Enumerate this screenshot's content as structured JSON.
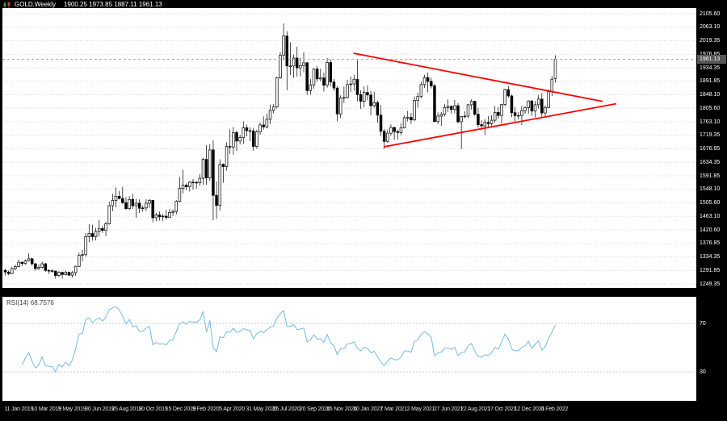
{
  "header": {
    "title": "GOLD,Weekly",
    "ohlc": "1900.25 1973.85 1887.11 1961.13"
  },
  "rsi_panel": {
    "label": "RSI(14)",
    "value": "68.7576"
  },
  "colors": {
    "background": "#000000",
    "plot_bg": "#ffffff",
    "grid": "#d8d8d8",
    "candle": "#000000",
    "bull_fill": "#ffffff",
    "bear_fill": "#000000",
    "rsi_line": "#74b9e8",
    "trendline": "#ff0000",
    "axis_text": "#ffffff",
    "level_dash": "#c9c9c9",
    "price_line": "#aaaaaa",
    "badge_bg": "#575757"
  },
  "chart_data": {
    "type": "candlestick",
    "title": "GOLD Weekly",
    "ylim": [
      1249.35,
      2105.6
    ],
    "x_range": [
      "11 Jan 2019",
      "6 Feb 2022"
    ],
    "current_price": 1961.13,
    "price_axis": {
      "current": "1961.13",
      "labels": [
        "2105.60",
        "2063.10",
        "2019.35",
        "1976.85",
        "1934.35",
        "1891.85",
        "1848.10",
        "1805.60",
        "1763.10",
        "1719.35",
        "1676.85",
        "1634.35",
        "1591.85",
        "1548.10",
        "1505.60",
        "1463.10",
        "1420.60",
        "1376.85",
        "1334.35",
        "1291.85",
        "1249.35"
      ]
    },
    "time_axis": {
      "step_weeks": 8,
      "labels": [
        "11 Jan 2019",
        "10 Mar 2019",
        "5 May 2019",
        "30 Jun 2019",
        "25 Aug 2019",
        "20 Oct 2019",
        "15 Dec 2019",
        "9 Feb 2020",
        "5 Apr 2020",
        "31 May 2020",
        "26 Jul 2020",
        "20 Sep 2020",
        "15 Nov 2020",
        "10 Jan 2021",
        "7 Mar 2021",
        "2 May 2021",
        "27 Jun 2021",
        "22 Aug 2021",
        "17 Oct 2021",
        "12 Dec 2021",
        "6 Feb 2022"
      ]
    },
    "candles": [
      [
        1292,
        1298,
        1276,
        1287
      ],
      [
        1287,
        1292,
        1277,
        1282
      ],
      [
        1282,
        1304,
        1281,
        1298
      ],
      [
        1298,
        1310,
        1293,
        1304
      ],
      [
        1304,
        1326,
        1302,
        1318
      ],
      [
        1318,
        1321,
        1306,
        1314
      ],
      [
        1314,
        1327,
        1310,
        1322
      ],
      [
        1322,
        1346,
        1320,
        1329
      ],
      [
        1329,
        1332,
        1307,
        1313
      ],
      [
        1313,
        1316,
        1292,
        1298
      ],
      [
        1298,
        1311,
        1293,
        1302
      ],
      [
        1302,
        1320,
        1298,
        1313
      ],
      [
        1313,
        1316,
        1288,
        1292
      ],
      [
        1292,
        1296,
        1281,
        1291
      ],
      [
        1291,
        1295,
        1285,
        1290
      ],
      [
        1290,
        1291,
        1266,
        1276
      ],
      [
        1276,
        1289,
        1271,
        1286
      ],
      [
        1286,
        1288,
        1266,
        1279
      ],
      [
        1279,
        1292,
        1276,
        1286
      ],
      [
        1286,
        1288,
        1274,
        1277
      ],
      [
        1277,
        1290,
        1269,
        1285
      ],
      [
        1285,
        1307,
        1275,
        1305
      ],
      [
        1305,
        1348,
        1303,
        1340
      ],
      [
        1340,
        1358,
        1320,
        1342
      ],
      [
        1342,
        1411,
        1336,
        1399
      ],
      [
        1399,
        1439,
        1381,
        1409
      ],
      [
        1409,
        1437,
        1386,
        1399
      ],
      [
        1399,
        1427,
        1387,
        1416
      ],
      [
        1416,
        1452,
        1400,
        1425
      ],
      [
        1425,
        1433,
        1411,
        1419
      ],
      [
        1419,
        1446,
        1400,
        1440
      ],
      [
        1440,
        1510,
        1437,
        1497
      ],
      [
        1497,
        1535,
        1480,
        1514
      ],
      [
        1514,
        1555,
        1492,
        1527
      ],
      [
        1527,
        1544,
        1517,
        1520
      ],
      [
        1520,
        1557,
        1502,
        1507
      ],
      [
        1507,
        1524,
        1484,
        1488
      ],
      [
        1488,
        1527,
        1483,
        1517
      ],
      [
        1517,
        1535,
        1487,
        1497
      ],
      [
        1497,
        1519,
        1459,
        1505
      ],
      [
        1505,
        1517,
        1474,
        1489
      ],
      [
        1489,
        1498,
        1478,
        1490
      ],
      [
        1490,
        1518,
        1480,
        1505
      ],
      [
        1505,
        1519,
        1491,
        1514
      ],
      [
        1514,
        1516,
        1445,
        1459
      ],
      [
        1459,
        1475,
        1448,
        1468
      ],
      [
        1468,
        1479,
        1450,
        1462
      ],
      [
        1462,
        1471,
        1449,
        1464
      ],
      [
        1464,
        1484,
        1453,
        1460
      ],
      [
        1460,
        1487,
        1458,
        1476
      ],
      [
        1476,
        1485,
        1465,
        1479
      ],
      [
        1479,
        1515,
        1470,
        1511
      ],
      [
        1511,
        1588,
        1508,
        1552
      ],
      [
        1552,
        1611,
        1536,
        1562
      ],
      [
        1562,
        1568,
        1546,
        1557
      ],
      [
        1557,
        1575,
        1542,
        1572
      ],
      [
        1572,
        1582,
        1548,
        1571
      ],
      [
        1571,
        1576,
        1551,
        1570
      ],
      [
        1570,
        1598,
        1560,
        1584
      ],
      [
        1584,
        1649,
        1562,
        1644
      ],
      [
        1644,
        1689,
        1563,
        1585
      ],
      [
        1585,
        1692,
        1576,
        1674
      ],
      [
        1674,
        1704,
        1451,
        1530
      ],
      [
        1530,
        1574,
        1455,
        1498
      ],
      [
        1498,
        1644,
        1482,
        1628
      ],
      [
        1628,
        1631,
        1570,
        1621
      ],
      [
        1621,
        1698,
        1608,
        1685
      ],
      [
        1685,
        1739,
        1661,
        1683
      ],
      [
        1683,
        1747,
        1659,
        1729
      ],
      [
        1729,
        1736,
        1670,
        1702
      ],
      [
        1702,
        1722,
        1691,
        1713
      ],
      [
        1713,
        1765,
        1693,
        1744
      ],
      [
        1744,
        1754,
        1717,
        1735
      ],
      [
        1735,
        1746,
        1702,
        1734
      ],
      [
        1734,
        1744,
        1671,
        1685
      ],
      [
        1685,
        1738,
        1677,
        1731
      ],
      [
        1731,
        1761,
        1723,
        1753
      ],
      [
        1753,
        1780,
        1738,
        1747
      ],
      [
        1747,
        1789,
        1742,
        1771
      ],
      [
        1771,
        1818,
        1756,
        1799
      ],
      [
        1799,
        1819,
        1790,
        1810
      ],
      [
        1810,
        1906,
        1805,
        1902
      ],
      [
        1902,
        1984,
        1899,
        1974
      ],
      [
        1974,
        2075,
        1958,
        2035
      ],
      [
        2035,
        2050,
        1863,
        1940
      ],
      [
        1940,
        2015,
        1911,
        1940
      ],
      [
        1940,
        1976,
        1902,
        1965
      ],
      [
        1965,
        2001,
        1906,
        1934
      ],
      [
        1934,
        1966,
        1907,
        1941
      ],
      [
        1941,
        1983,
        1920,
        1950
      ],
      [
        1950,
        1953,
        1848,
        1862
      ],
      [
        1862,
        1899,
        1849,
        1880
      ],
      [
        1880,
        1933,
        1868,
        1930
      ],
      [
        1930,
        1939,
        1890,
        1899
      ],
      [
        1899,
        1931,
        1891,
        1902
      ],
      [
        1902,
        1919,
        1859,
        1879
      ],
      [
        1879,
        1965,
        1871,
        1951
      ],
      [
        1951,
        1961,
        1875,
        1889
      ],
      [
        1889,
        1899,
        1861,
        1870
      ],
      [
        1870,
        1876,
        1765,
        1788
      ],
      [
        1788,
        1847,
        1775,
        1838
      ],
      [
        1838,
        1875,
        1822,
        1840
      ],
      [
        1840,
        1896,
        1837,
        1881
      ],
      [
        1881,
        1907,
        1857,
        1883
      ],
      [
        1883,
        1912,
        1862,
        1898
      ],
      [
        1898,
        1959,
        1828,
        1849
      ],
      [
        1849,
        1863,
        1804,
        1828
      ],
      [
        1828,
        1875,
        1809,
        1856
      ],
      [
        1856,
        1878,
        1831,
        1848
      ],
      [
        1848,
        1861,
        1784,
        1814
      ],
      [
        1814,
        1858,
        1808,
        1824
      ],
      [
        1824,
        1830,
        1760,
        1784
      ],
      [
        1784,
        1816,
        1717,
        1733
      ],
      [
        1733,
        1740,
        1677,
        1701
      ],
      [
        1701,
        1739,
        1696,
        1727
      ],
      [
        1727,
        1755,
        1719,
        1745
      ],
      [
        1745,
        1748,
        1705,
        1732
      ],
      [
        1732,
        1738,
        1707,
        1729
      ],
      [
        1729,
        1758,
        1721,
        1744
      ],
      [
        1744,
        1784,
        1742,
        1776
      ],
      [
        1776,
        1798,
        1764,
        1777
      ],
      [
        1777,
        1791,
        1756,
        1769
      ],
      [
        1769,
        1843,
        1765,
        1831
      ],
      [
        1831,
        1855,
        1808,
        1843
      ],
      [
        1843,
        1890,
        1838,
        1881
      ],
      [
        1881,
        1912,
        1870,
        1903
      ],
      [
        1903,
        1919,
        1856,
        1891
      ],
      [
        1891,
        1903,
        1869,
        1877
      ],
      [
        1877,
        1884,
        1761,
        1764
      ],
      [
        1764,
        1793,
        1755,
        1781
      ],
      [
        1781,
        1794,
        1750,
        1787
      ],
      [
        1787,
        1819,
        1780,
        1808
      ],
      [
        1808,
        1834,
        1794,
        1812
      ],
      [
        1812,
        1815,
        1789,
        1802
      ],
      [
        1802,
        1832,
        1790,
        1814
      ],
      [
        1814,
        1823,
        1758,
        1763
      ],
      [
        1763,
        1782,
        1677,
        1780
      ],
      [
        1780,
        1797,
        1774,
        1781
      ],
      [
        1781,
        1820,
        1775,
        1817
      ],
      [
        1817,
        1834,
        1802,
        1828
      ],
      [
        1828,
        1830,
        1782,
        1787
      ],
      [
        1787,
        1808,
        1745,
        1754
      ],
      [
        1754,
        1768,
        1738,
        1750
      ],
      [
        1750,
        1771,
        1721,
        1761
      ],
      [
        1761,
        1781,
        1746,
        1757
      ],
      [
        1757,
        1784,
        1750,
        1768
      ],
      [
        1768,
        1813,
        1760,
        1793
      ],
      [
        1793,
        1810,
        1772,
        1783
      ],
      [
        1783,
        1820,
        1759,
        1818
      ],
      [
        1818,
        1868,
        1812,
        1865
      ],
      [
        1865,
        1877,
        1839,
        1845
      ],
      [
        1845,
        1849,
        1778,
        1792
      ],
      [
        1792,
        1810,
        1762,
        1783
      ],
      [
        1783,
        1794,
        1770,
        1783
      ],
      [
        1783,
        1814,
        1753,
        1798
      ],
      [
        1798,
        1812,
        1788,
        1808
      ],
      [
        1808,
        1831,
        1789,
        1829
      ],
      [
        1829,
        1832,
        1782,
        1797
      ],
      [
        1797,
        1829,
        1777,
        1817
      ],
      [
        1817,
        1848,
        1805,
        1835
      ],
      [
        1835,
        1854,
        1779,
        1791
      ],
      [
        1791,
        1815,
        1780,
        1808
      ],
      [
        1808,
        1866,
        1806,
        1858
      ],
      [
        1858,
        1908,
        1845,
        1898
      ],
      [
        1900.25,
        1973.85,
        1887.11,
        1961.13
      ]
    ],
    "trendlines": [
      {
        "name": "triangle-upper",
        "from_t": 104,
        "from_p": 1980,
        "to_t": 178,
        "to_p": 1828
      },
      {
        "name": "triangle-lower",
        "from_t": 113,
        "from_p": 1684,
        "to_t": 182,
        "to_p": 1820
      }
    ],
    "rsi": {
      "period": 14,
      "last": 68.7576,
      "levels": [
        "70",
        "30"
      ]
    }
  }
}
